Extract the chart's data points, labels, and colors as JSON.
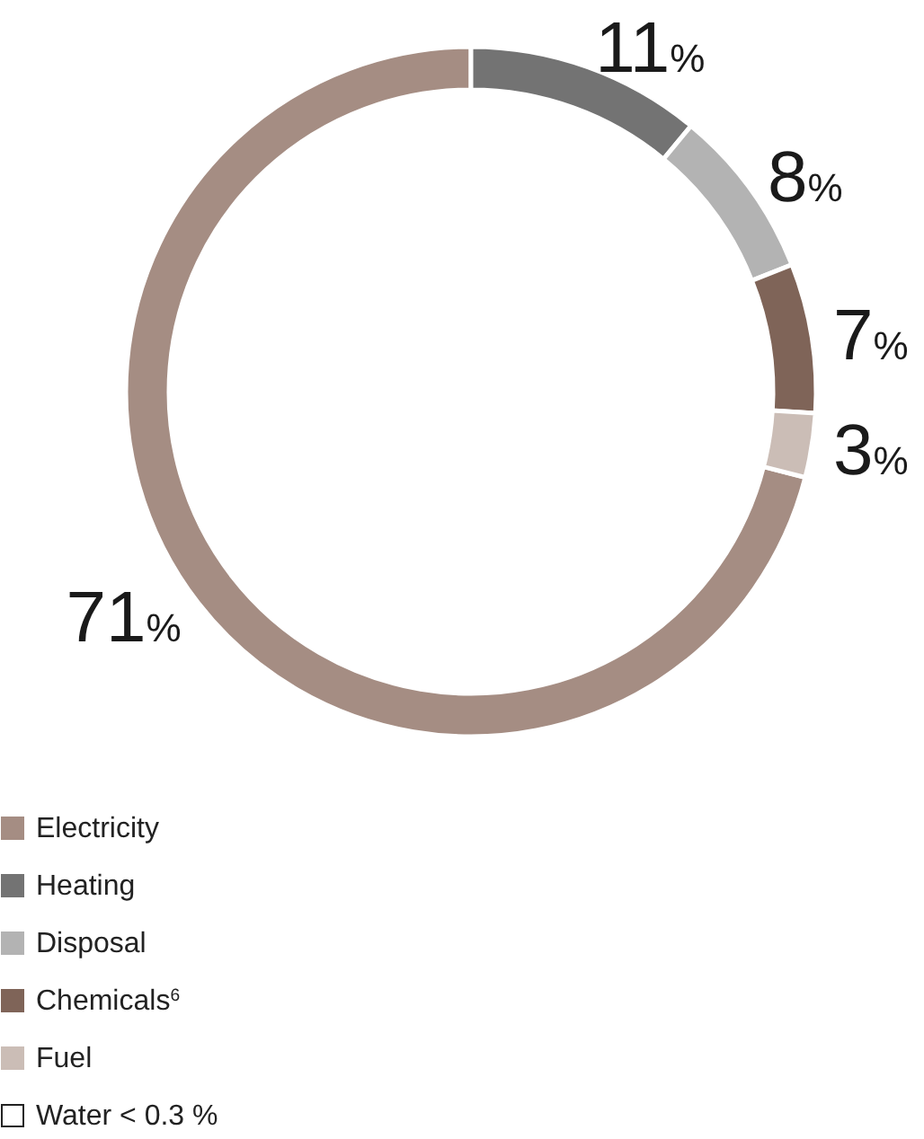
{
  "chart_data": {
    "type": "donut",
    "categories": [
      "Electricity",
      "Heating",
      "Disposal",
      "Chemicals$^{6}$",
      "Fuel",
      "Water < 0.3 %"
    ],
    "values": [
      71,
      11,
      8,
      7,
      3,
      null
    ],
    "colors": [
      "#a58d83",
      "#737373",
      "#b3b3b3",
      "#7f6458",
      "#cbbdb6",
      "#ffffff"
    ],
    "value_labels": [
      "71%",
      "11%",
      "8%",
      "7%",
      "3%",
      null
    ],
    "legend": "bottom left"
  }
}
